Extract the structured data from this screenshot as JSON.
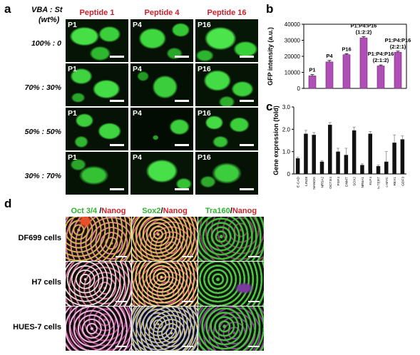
{
  "panel_a": {
    "letter": "a",
    "header_line1": "VBA : St",
    "header_line2": "(wt%)",
    "columns": [
      "Peptide 1",
      "Peptide 4",
      "Peptide 16"
    ],
    "rows": [
      "100% : 0",
      "70% : 30%",
      "50% : 50%",
      "30% : 70%"
    ],
    "cell_labels": [
      "P1",
      "P4",
      "P16"
    ]
  },
  "panel_b": {
    "letter": "b"
  },
  "panel_c": {
    "letter": "c"
  },
  "panel_d": {
    "letter": "d",
    "columns": [
      {
        "green": "Oct 3/4",
        "sep": " /",
        "red": "Nanog"
      },
      {
        "green": "Sox2",
        "sep": "/",
        "red": "Nanog"
      },
      {
        "green": "Tra160",
        "sep": "/",
        "red": "Nanog"
      }
    ],
    "rows": [
      "DF699 cells",
      "H7 cells",
      "HUES-7 cells"
    ]
  },
  "chart_data": [
    {
      "type": "bar",
      "ylabel": "GFP intensity (a.u.)",
      "ylim": [
        0,
        40000
      ],
      "yticks": [
        "0",
        "10000",
        "20000",
        "30000",
        "40000"
      ],
      "categories": [
        "P1",
        "P4",
        "P16",
        "P1:P4:P16 (1:2:2)",
        "P1:P4:P16 (2:1:2)",
        "P1:P4:P16 (2:2:1)"
      ],
      "bar_labels": [
        [
          "P1"
        ],
        [
          "P4"
        ],
        [
          "P16"
        ],
        [
          "P1:P4:P16",
          "(1:2:2)"
        ],
        [
          "P1:P4:P16",
          "(2:1:2)"
        ],
        [
          "P1:P4:P16",
          "(2:2:1)"
        ]
      ],
      "values": [
        7800,
        16500,
        21000,
        31500,
        14000,
        22500
      ],
      "errors": [
        800,
        900,
        600,
        700,
        600,
        700
      ],
      "bar_color": "#b04fb6",
      "grid": false
    },
    {
      "type": "bar",
      "ylabel": "Gene expression (fold)",
      "ylim": [
        0,
        3.0
      ],
      "yticks": [
        "0",
        "1.0",
        "2.0",
        "3.0"
      ],
      "categories": [
        "E-CAD",
        "LIN28",
        "NANOG",
        "NR5A2",
        "OCT3/4",
        "FGF4",
        "DNMT",
        "SOX2",
        "NR6A1",
        "KLF4",
        "h-TERT",
        "c-MYC",
        "REX1",
        "GDF3"
      ],
      "values": [
        0.7,
        1.8,
        1.75,
        0.55,
        2.2,
        1.0,
        0.85,
        1.95,
        0.4,
        1.8,
        0.35,
        0.55,
        1.4,
        1.55
      ],
      "errors": [
        0.05,
        0.15,
        0.1,
        0.05,
        0.1,
        0.15,
        0.3,
        0.15,
        0.05,
        0.1,
        0.05,
        0.45,
        0.35,
        0.15
      ],
      "bar_color": "#111111",
      "grid": false
    }
  ]
}
